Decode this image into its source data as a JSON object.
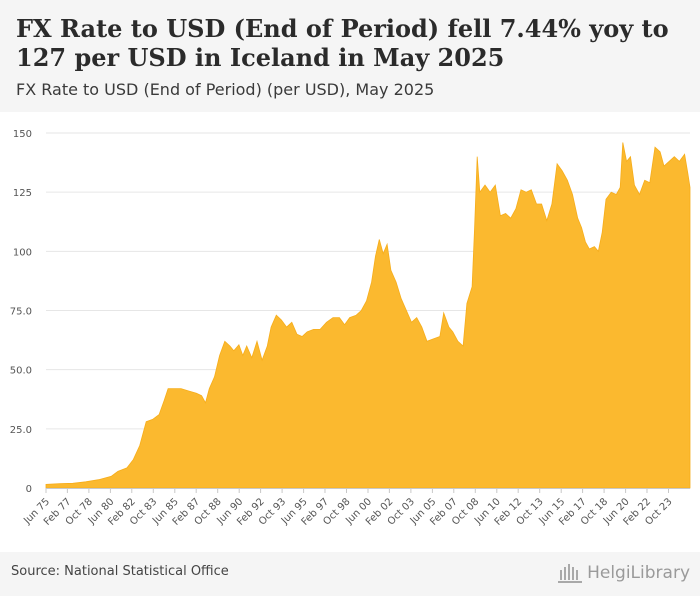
{
  "header": {
    "title": "FX Rate to USD (End of Period) fell 7.44% yoy to 127 per USD in Iceland in May 2025",
    "subtitle": "FX Rate to USD (End of Period) (per USD), May 2025"
  },
  "footer": {
    "source": "Source: National Statistical Office",
    "brand": "HelgiLibrary"
  },
  "colors": {
    "area": "#fbb92f",
    "grid": "#e6e6e6",
    "axis": "#c8c8c8"
  },
  "chart_data": {
    "type": "area",
    "title": "FX Rate to USD (End of Period)",
    "unit": "per USD",
    "ylim": [
      0,
      150
    ],
    "yticks": [
      {
        "value": 0,
        "label": "0"
      },
      {
        "value": 25,
        "label": "25.0"
      },
      {
        "value": 50,
        "label": "50.0"
      },
      {
        "value": 75,
        "label": "75.0"
      },
      {
        "value": 100,
        "label": "100"
      },
      {
        "value": 125,
        "label": "125"
      },
      {
        "value": 150,
        "label": "150"
      }
    ],
    "xrange": [
      1975.42,
      2025.42
    ],
    "xticks": [
      {
        "t": 1975.42,
        "label": "Jun 75"
      },
      {
        "t": 1977.08,
        "label": "Feb 77"
      },
      {
        "t": 1978.75,
        "label": "Oct 78"
      },
      {
        "t": 1980.42,
        "label": "Jun 80"
      },
      {
        "t": 1982.08,
        "label": "Feb 82"
      },
      {
        "t": 1983.75,
        "label": "Oct 83"
      },
      {
        "t": 1985.42,
        "label": "Jun 85"
      },
      {
        "t": 1987.08,
        "label": "Feb 87"
      },
      {
        "t": 1988.75,
        "label": "Oct 88"
      },
      {
        "t": 1990.42,
        "label": "Jun 90"
      },
      {
        "t": 1992.08,
        "label": "Feb 92"
      },
      {
        "t": 1993.75,
        "label": "Oct 93"
      },
      {
        "t": 1995.42,
        "label": "Jun 95"
      },
      {
        "t": 1997.08,
        "label": "Feb 97"
      },
      {
        "t": 1998.75,
        "label": "Oct 98"
      },
      {
        "t": 2000.42,
        "label": "Jun 00"
      },
      {
        "t": 2002.08,
        "label": "Feb 02"
      },
      {
        "t": 2003.75,
        "label": "Oct 03"
      },
      {
        "t": 2005.42,
        "label": "Jun 05"
      },
      {
        "t": 2007.08,
        "label": "Feb 07"
      },
      {
        "t": 2008.75,
        "label": "Oct 08"
      },
      {
        "t": 2010.42,
        "label": "Jun 10"
      },
      {
        "t": 2012.08,
        "label": "Feb 12"
      },
      {
        "t": 2013.75,
        "label": "Oct 13"
      },
      {
        "t": 2015.42,
        "label": "Jun 15"
      },
      {
        "t": 2017.08,
        "label": "Feb 17"
      },
      {
        "t": 2018.75,
        "label": "Oct 18"
      },
      {
        "t": 2020.42,
        "label": "Jun 20"
      },
      {
        "t": 2022.08,
        "label": "Feb 22"
      },
      {
        "t": 2023.75,
        "label": "Oct 23"
      }
    ],
    "series": [
      {
        "name": "FX Rate to USD (End of Period)",
        "points": [
          [
            1975.42,
            1.5
          ],
          [
            1976.5,
            1.8
          ],
          [
            1977.5,
            2.0
          ],
          [
            1978.5,
            2.6
          ],
          [
            1979.5,
            3.5
          ],
          [
            1980.5,
            5.0
          ],
          [
            1981.0,
            7.0
          ],
          [
            1981.7,
            8.5
          ],
          [
            1982.2,
            12.0
          ],
          [
            1982.7,
            18.0
          ],
          [
            1983.2,
            28.0
          ],
          [
            1983.7,
            29.0
          ],
          [
            1984.2,
            31.0
          ],
          [
            1984.6,
            37.0
          ],
          [
            1984.9,
            42.0
          ],
          [
            1985.4,
            42.0
          ],
          [
            1985.9,
            42.0
          ],
          [
            1986.5,
            41.0
          ],
          [
            1987.1,
            40.0
          ],
          [
            1987.5,
            39.0
          ],
          [
            1987.8,
            36.0
          ],
          [
            1988.1,
            42.0
          ],
          [
            1988.5,
            47.0
          ],
          [
            1988.9,
            56.0
          ],
          [
            1989.3,
            62.0
          ],
          [
            1989.7,
            60.0
          ],
          [
            1990.0,
            58.0
          ],
          [
            1990.4,
            60.5
          ],
          [
            1990.7,
            56.0
          ],
          [
            1991.0,
            60.0
          ],
          [
            1991.4,
            55.0
          ],
          [
            1991.8,
            62.0
          ],
          [
            1992.2,
            54.0
          ],
          [
            1992.6,
            60.0
          ],
          [
            1992.9,
            68.0
          ],
          [
            1993.3,
            73.0
          ],
          [
            1993.7,
            71.0
          ],
          [
            1994.1,
            68.0
          ],
          [
            1994.5,
            70.0
          ],
          [
            1994.9,
            65.0
          ],
          [
            1995.3,
            64.0
          ],
          [
            1995.7,
            66.0
          ],
          [
            1996.2,
            67.0
          ],
          [
            1996.7,
            67.0
          ],
          [
            1997.2,
            70.0
          ],
          [
            1997.7,
            72.0
          ],
          [
            1998.2,
            72.0
          ],
          [
            1998.6,
            69.0
          ],
          [
            1999.0,
            72.0
          ],
          [
            1999.5,
            73.0
          ],
          [
            1999.9,
            75.0
          ],
          [
            2000.3,
            79.0
          ],
          [
            2000.7,
            87.0
          ],
          [
            2001.0,
            98.0
          ],
          [
            2001.3,
            105.0
          ],
          [
            2001.6,
            99.0
          ],
          [
            2001.9,
            103.0
          ],
          [
            2002.2,
            92.0
          ],
          [
            2002.6,
            87.0
          ],
          [
            2003.0,
            80.0
          ],
          [
            2003.4,
            75.0
          ],
          [
            2003.8,
            70.0
          ],
          [
            2004.2,
            72.0
          ],
          [
            2004.6,
            68.0
          ],
          [
            2005.0,
            62.0
          ],
          [
            2005.5,
            63.0
          ],
          [
            2006.0,
            64.0
          ],
          [
            2006.3,
            74.0
          ],
          [
            2006.7,
            68.0
          ],
          [
            2007.0,
            66.0
          ],
          [
            2007.4,
            62.0
          ],
          [
            2007.8,
            60.0
          ],
          [
            2008.1,
            78.0
          ],
          [
            2008.5,
            85.0
          ],
          [
            2008.7,
            110.0
          ],
          [
            2008.9,
            140.0
          ],
          [
            2009.1,
            125.0
          ],
          [
            2009.5,
            128.0
          ],
          [
            2009.9,
            125.0
          ],
          [
            2010.3,
            128.0
          ],
          [
            2010.7,
            115.0
          ],
          [
            2011.1,
            116.0
          ],
          [
            2011.5,
            114.0
          ],
          [
            2011.9,
            118.0
          ],
          [
            2012.3,
            126.0
          ],
          [
            2012.7,
            125.0
          ],
          [
            2013.1,
            126.0
          ],
          [
            2013.5,
            120.0
          ],
          [
            2013.9,
            120.0
          ],
          [
            2014.3,
            113.0
          ],
          [
            2014.7,
            120.0
          ],
          [
            2015.1,
            137.0
          ],
          [
            2015.5,
            134.0
          ],
          [
            2015.9,
            130.0
          ],
          [
            2016.3,
            124.0
          ],
          [
            2016.7,
            114.0
          ],
          [
            2017.0,
            110.0
          ],
          [
            2017.3,
            104.0
          ],
          [
            2017.6,
            101.0
          ],
          [
            2018.0,
            102.0
          ],
          [
            2018.3,
            100.0
          ],
          [
            2018.6,
            108.0
          ],
          [
            2018.9,
            122.0
          ],
          [
            2019.3,
            125.0
          ],
          [
            2019.7,
            124.0
          ],
          [
            2020.0,
            127.0
          ],
          [
            2020.2,
            146.0
          ],
          [
            2020.5,
            138.0
          ],
          [
            2020.8,
            140.0
          ],
          [
            2021.1,
            128.0
          ],
          [
            2021.5,
            124.0
          ],
          [
            2021.9,
            130.0
          ],
          [
            2022.3,
            129.0
          ],
          [
            2022.7,
            144.0
          ],
          [
            2023.1,
            142.0
          ],
          [
            2023.4,
            136.0
          ],
          [
            2023.8,
            138.0
          ],
          [
            2024.2,
            140.0
          ],
          [
            2024.6,
            138.0
          ],
          [
            2025.0,
            141.0
          ],
          [
            2025.25,
            133.0
          ],
          [
            2025.42,
            127.0
          ]
        ]
      }
    ]
  }
}
